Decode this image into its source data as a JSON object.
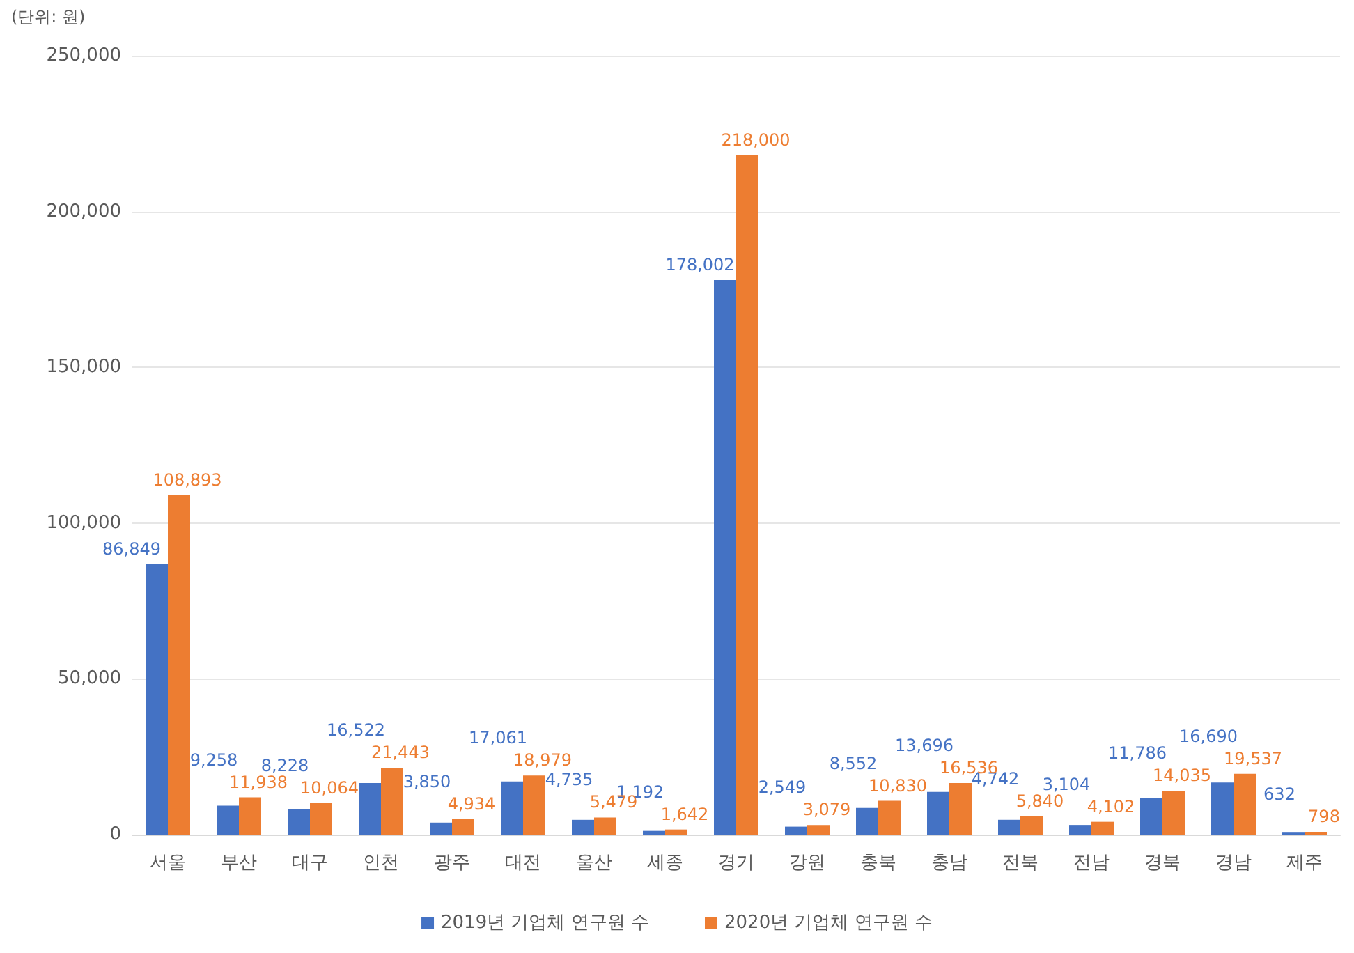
{
  "chart_data": {
    "type": "bar",
    "annotations": [
      "(단위: 원)"
    ],
    "categories": [
      "서울",
      "부산",
      "대구",
      "인천",
      "광주",
      "대전",
      "울산",
      "세종",
      "경기",
      "강원",
      "충북",
      "충남",
      "전북",
      "전남",
      "경북",
      "경남",
      "제주"
    ],
    "series": [
      {
        "name": "2019년 기업체 연구원 수",
        "color": "#4472c4",
        "values": [
          86849,
          9258,
          8228,
          16522,
          3850,
          17061,
          4735,
          1192,
          178002,
          2549,
          8552,
          13696,
          4742,
          3104,
          11786,
          16690,
          632
        ],
        "value_labels": [
          "86,849",
          "9,258",
          "8,228",
          "16,522",
          "3,850",
          "17,061",
          "4,735",
          "1,192",
          "178,002",
          "2,549",
          "8,552",
          "13,696",
          "4,742",
          "3,104",
          "11,786",
          "16,690",
          "632"
        ]
      },
      {
        "name": "2020년 기업체 연구원 수",
        "color": "#ed7d31",
        "values": [
          108893,
          11938,
          10064,
          21443,
          4934,
          18979,
          5479,
          1642,
          218000,
          3079,
          10830,
          16536,
          5840,
          4102,
          14035,
          19537,
          798
        ],
        "value_labels": [
          "108,893",
          "11,938",
          "10,064",
          "21,443",
          "4,934",
          "18,979",
          "5,479",
          "1,642",
          "218,000",
          "3,079",
          "10,830",
          "16,536",
          "5,840",
          "4,102",
          "14,035",
          "19,537",
          "798"
        ]
      }
    ],
    "ylim": [
      0,
      250000
    ],
    "yticks": [
      0,
      {
        "value": 50000,
        "label": "50,000"
      },
      {
        "value": 100000,
        "label": "100,000"
      },
      {
        "value": 150000,
        "label": "150,000"
      },
      {
        "value": 200000,
        "label": "200,000"
      },
      {
        "value": 250000,
        "label": "250,000"
      }
    ],
    "grid": "y",
    "legend": "bottom"
  }
}
